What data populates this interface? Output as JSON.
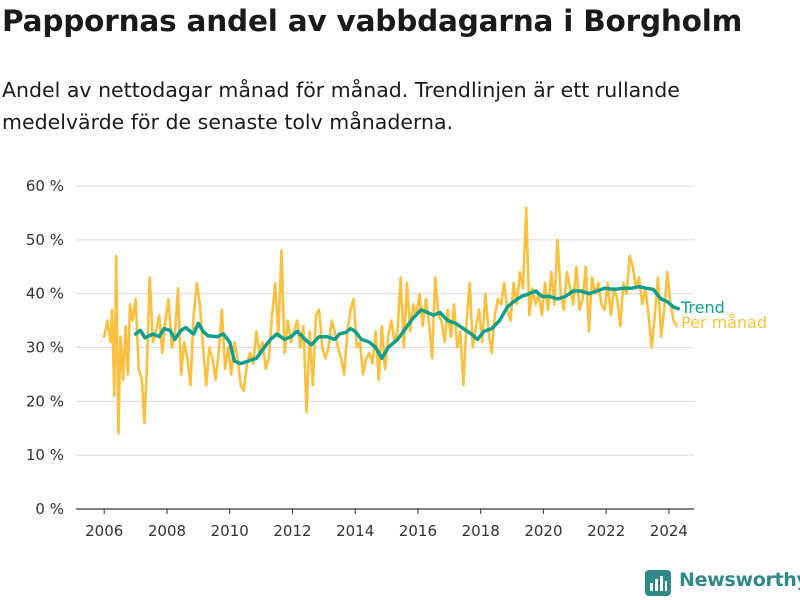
{
  "header": {
    "title": "Pappornas andel av vabbdagarna i Borgholm",
    "subtitle": "Andel av nettodagar månad för månad. Trendlinjen är ett rullande medelvärde för de senaste tolv månaderna."
  },
  "brand": {
    "name": "Newsworthy",
    "icon": "bar-chart-logo-icon",
    "color": "#2f8a86"
  },
  "chart_data": {
    "type": "line",
    "title": "Pappornas andel av vabbdagarna i Borgholm",
    "xlim": [
      2005.1,
      2024.8
    ],
    "ylim": [
      0,
      60
    ],
    "x_ticks": [
      2006,
      2008,
      2010,
      2012,
      2014,
      2016,
      2018,
      2020,
      2022,
      2024
    ],
    "x_tick_labels": [
      "2006",
      "2008",
      "2010",
      "2012",
      "2014",
      "2016",
      "2018",
      "2020",
      "2022",
      "2024"
    ],
    "y_ticks": [
      0,
      10,
      20,
      30,
      40,
      50,
      60
    ],
    "y_tick_labels": [
      "0 %",
      "10 %",
      "20 %",
      "30 %",
      "40 %",
      "50 %",
      "60 %"
    ],
    "grid": true,
    "legend": "direct labels at right end of lines",
    "series": [
      {
        "name": "Per månad",
        "color": "#fbc040",
        "points": [
          [
            2006.0,
            32
          ],
          [
            2006.1,
            35
          ],
          [
            2006.2,
            31
          ],
          [
            2006.25,
            37
          ],
          [
            2006.32,
            21
          ],
          [
            2006.38,
            47
          ],
          [
            2006.45,
            14
          ],
          [
            2006.52,
            32
          ],
          [
            2006.6,
            24
          ],
          [
            2006.68,
            34
          ],
          [
            2006.75,
            25
          ],
          [
            2006.82,
            38
          ],
          [
            2006.9,
            35
          ],
          [
            2007.0,
            39
          ],
          [
            2007.1,
            26
          ],
          [
            2007.2,
            24
          ],
          [
            2007.28,
            16
          ],
          [
            2007.35,
            25
          ],
          [
            2007.45,
            43
          ],
          [
            2007.55,
            31
          ],
          [
            2007.65,
            33
          ],
          [
            2007.75,
            36
          ],
          [
            2007.85,
            29
          ],
          [
            2007.95,
            35
          ],
          [
            2008.05,
            39
          ],
          [
            2008.15,
            30
          ],
          [
            2008.25,
            32
          ],
          [
            2008.35,
            41
          ],
          [
            2008.45,
            25
          ],
          [
            2008.55,
            31
          ],
          [
            2008.65,
            28
          ],
          [
            2008.75,
            23
          ],
          [
            2008.85,
            36
          ],
          [
            2008.95,
            42
          ],
          [
            2009.05,
            38
          ],
          [
            2009.15,
            30
          ],
          [
            2009.25,
            23
          ],
          [
            2009.35,
            30
          ],
          [
            2009.45,
            28
          ],
          [
            2009.55,
            24
          ],
          [
            2009.65,
            29
          ],
          [
            2009.75,
            37
          ],
          [
            2009.85,
            26
          ],
          [
            2009.95,
            30
          ],
          [
            2010.05,
            25
          ],
          [
            2010.15,
            31
          ],
          [
            2010.25,
            28
          ],
          [
            2010.35,
            23
          ],
          [
            2010.45,
            22
          ],
          [
            2010.55,
            27
          ],
          [
            2010.65,
            29
          ],
          [
            2010.75,
            27
          ],
          [
            2010.85,
            33
          ],
          [
            2010.95,
            29
          ],
          [
            2011.05,
            31
          ],
          [
            2011.15,
            26
          ],
          [
            2011.25,
            28
          ],
          [
            2011.35,
            36
          ],
          [
            2011.45,
            42
          ],
          [
            2011.55,
            32
          ],
          [
            2011.65,
            48
          ],
          [
            2011.75,
            29
          ],
          [
            2011.85,
            35
          ],
          [
            2011.95,
            31
          ],
          [
            2012.05,
            33
          ],
          [
            2012.15,
            35
          ],
          [
            2012.25,
            30
          ],
          [
            2012.35,
            34
          ],
          [
            2012.45,
            18
          ],
          [
            2012.55,
            33
          ],
          [
            2012.65,
            23
          ],
          [
            2012.75,
            36
          ],
          [
            2012.85,
            37
          ],
          [
            2012.95,
            30
          ],
          [
            2013.05,
            28
          ],
          [
            2013.15,
            30
          ],
          [
            2013.25,
            35
          ],
          [
            2013.35,
            33
          ],
          [
            2013.45,
            30
          ],
          [
            2013.55,
            28
          ],
          [
            2013.65,
            25
          ],
          [
            2013.75,
            33
          ],
          [
            2013.85,
            37
          ],
          [
            2013.95,
            39
          ],
          [
            2014.05,
            30
          ],
          [
            2014.15,
            31
          ],
          [
            2014.25,
            25
          ],
          [
            2014.35,
            28
          ],
          [
            2014.45,
            29
          ],
          [
            2014.55,
            27
          ],
          [
            2014.65,
            33
          ],
          [
            2014.75,
            24
          ],
          [
            2014.85,
            34
          ],
          [
            2014.95,
            26
          ],
          [
            2015.05,
            32
          ],
          [
            2015.15,
            35
          ],
          [
            2015.25,
            31
          ],
          [
            2015.35,
            33
          ],
          [
            2015.45,
            43
          ],
          [
            2015.55,
            30
          ],
          [
            2015.65,
            42
          ],
          [
            2015.75,
            33
          ],
          [
            2015.85,
            38
          ],
          [
            2015.95,
            36
          ],
          [
            2016.05,
            40
          ],
          [
            2016.15,
            34
          ],
          [
            2016.25,
            39
          ],
          [
            2016.35,
            35
          ],
          [
            2016.45,
            28
          ],
          [
            2016.55,
            43
          ],
          [
            2016.65,
            36
          ],
          [
            2016.75,
            35
          ],
          [
            2016.85,
            31
          ],
          [
            2016.95,
            37
          ],
          [
            2017.05,
            32
          ],
          [
            2017.15,
            38
          ],
          [
            2017.25,
            30
          ],
          [
            2017.35,
            33
          ],
          [
            2017.45,
            23
          ],
          [
            2017.55,
            35
          ],
          [
            2017.65,
            42
          ],
          [
            2017.75,
            30
          ],
          [
            2017.85,
            34
          ],
          [
            2017.95,
            37
          ],
          [
            2018.05,
            31
          ],
          [
            2018.15,
            40
          ],
          [
            2018.25,
            33
          ],
          [
            2018.35,
            29
          ],
          [
            2018.45,
            36
          ],
          [
            2018.55,
            39
          ],
          [
            2018.65,
            38
          ],
          [
            2018.75,
            42
          ],
          [
            2018.85,
            37
          ],
          [
            2018.95,
            35
          ],
          [
            2019.05,
            42
          ],
          [
            2019.15,
            38
          ],
          [
            2019.25,
            44
          ],
          [
            2019.35,
            41
          ],
          [
            2019.45,
            56
          ],
          [
            2019.55,
            36
          ],
          [
            2019.65,
            41
          ],
          [
            2019.75,
            38
          ],
          [
            2019.85,
            40
          ],
          [
            2019.95,
            36
          ],
          [
            2020.05,
            42
          ],
          [
            2020.15,
            37
          ],
          [
            2020.25,
            44
          ],
          [
            2020.35,
            38
          ],
          [
            2020.45,
            50
          ],
          [
            2020.55,
            40
          ],
          [
            2020.65,
            37
          ],
          [
            2020.75,
            44
          ],
          [
            2020.85,
            41
          ],
          [
            2020.95,
            38
          ],
          [
            2021.05,
            45
          ],
          [
            2021.15,
            37
          ],
          [
            2021.25,
            39
          ],
          [
            2021.35,
            45
          ],
          [
            2021.45,
            33
          ],
          [
            2021.55,
            43
          ],
          [
            2021.65,
            40
          ],
          [
            2021.75,
            42
          ],
          [
            2021.85,
            38
          ],
          [
            2021.95,
            37
          ],
          [
            2022.05,
            42
          ],
          [
            2022.15,
            36
          ],
          [
            2022.25,
            41
          ],
          [
            2022.35,
            39
          ],
          [
            2022.45,
            34
          ],
          [
            2022.55,
            42
          ],
          [
            2022.65,
            40
          ],
          [
            2022.75,
            47
          ],
          [
            2022.85,
            45
          ],
          [
            2022.95,
            41
          ],
          [
            2023.05,
            43
          ],
          [
            2023.15,
            38
          ],
          [
            2023.25,
            41
          ],
          [
            2023.35,
            36
          ],
          [
            2023.45,
            30
          ],
          [
            2023.55,
            36
          ],
          [
            2023.65,
            43
          ],
          [
            2023.75,
            32
          ],
          [
            2023.85,
            37
          ],
          [
            2023.95,
            44
          ],
          [
            2024.05,
            38
          ],
          [
            2024.15,
            35
          ],
          [
            2024.25,
            34
          ]
        ]
      },
      {
        "name": "Trend",
        "color": "#0e9e8c",
        "points": [
          [
            2007.0,
            32.5
          ],
          [
            2007.15,
            33.2
          ],
          [
            2007.3,
            31.8
          ],
          [
            2007.55,
            32.5
          ],
          [
            2007.75,
            32.0
          ],
          [
            2007.9,
            33.5
          ],
          [
            2008.1,
            33.2
          ],
          [
            2008.25,
            31.5
          ],
          [
            2008.45,
            33.2
          ],
          [
            2008.6,
            33.7
          ],
          [
            2008.85,
            32.5
          ],
          [
            2009.0,
            34.5
          ],
          [
            2009.15,
            33.0
          ],
          [
            2009.3,
            32.2
          ],
          [
            2009.6,
            32.0
          ],
          [
            2009.8,
            32.5
          ],
          [
            2010.0,
            31.0
          ],
          [
            2010.15,
            27.5
          ],
          [
            2010.35,
            27.0
          ],
          [
            2010.6,
            27.5
          ],
          [
            2010.85,
            28.0
          ],
          [
            2011.1,
            30.0
          ],
          [
            2011.3,
            31.5
          ],
          [
            2011.5,
            32.5
          ],
          [
            2011.75,
            31.5
          ],
          [
            2011.95,
            32.0
          ],
          [
            2012.15,
            33.0
          ],
          [
            2012.4,
            31.5
          ],
          [
            2012.6,
            30.5
          ],
          [
            2012.85,
            32.0
          ],
          [
            2013.1,
            32.0
          ],
          [
            2013.35,
            31.5
          ],
          [
            2013.5,
            32.5
          ],
          [
            2013.7,
            32.8
          ],
          [
            2013.85,
            33.5
          ],
          [
            2014.0,
            33.0
          ],
          [
            2014.2,
            31.5
          ],
          [
            2014.45,
            31.0
          ],
          [
            2014.65,
            30.0
          ],
          [
            2014.85,
            28.0
          ],
          [
            2015.05,
            30.0
          ],
          [
            2015.35,
            31.5
          ],
          [
            2015.6,
            33.5
          ],
          [
            2015.85,
            35.5
          ],
          [
            2016.1,
            37.0
          ],
          [
            2016.3,
            36.5
          ],
          [
            2016.5,
            36.0
          ],
          [
            2016.7,
            36.5
          ],
          [
            2016.95,
            35.0
          ],
          [
            2017.2,
            34.5
          ],
          [
            2017.45,
            33.5
          ],
          [
            2017.7,
            32.5
          ],
          [
            2017.9,
            31.5
          ],
          [
            2018.1,
            33.0
          ],
          [
            2018.35,
            33.5
          ],
          [
            2018.6,
            35.0
          ],
          [
            2018.85,
            37.5
          ],
          [
            2019.05,
            38.5
          ],
          [
            2019.3,
            39.5
          ],
          [
            2019.55,
            40.0
          ],
          [
            2019.75,
            40.5
          ],
          [
            2019.95,
            39.5
          ],
          [
            2020.2,
            39.5
          ],
          [
            2020.45,
            39.0
          ],
          [
            2020.7,
            39.5
          ],
          [
            2020.95,
            40.5
          ],
          [
            2021.2,
            40.5
          ],
          [
            2021.45,
            40.0
          ],
          [
            2021.7,
            40.5
          ],
          [
            2021.95,
            41.0
          ],
          [
            2022.25,
            40.8
          ],
          [
            2022.55,
            41.0
          ],
          [
            2022.8,
            41.0
          ],
          [
            2023.05,
            41.3
          ],
          [
            2023.3,
            41.0
          ],
          [
            2023.5,
            40.8
          ],
          [
            2023.75,
            39.0
          ],
          [
            2023.95,
            38.5
          ],
          [
            2024.15,
            37.5
          ],
          [
            2024.3,
            37.2
          ]
        ]
      }
    ]
  }
}
